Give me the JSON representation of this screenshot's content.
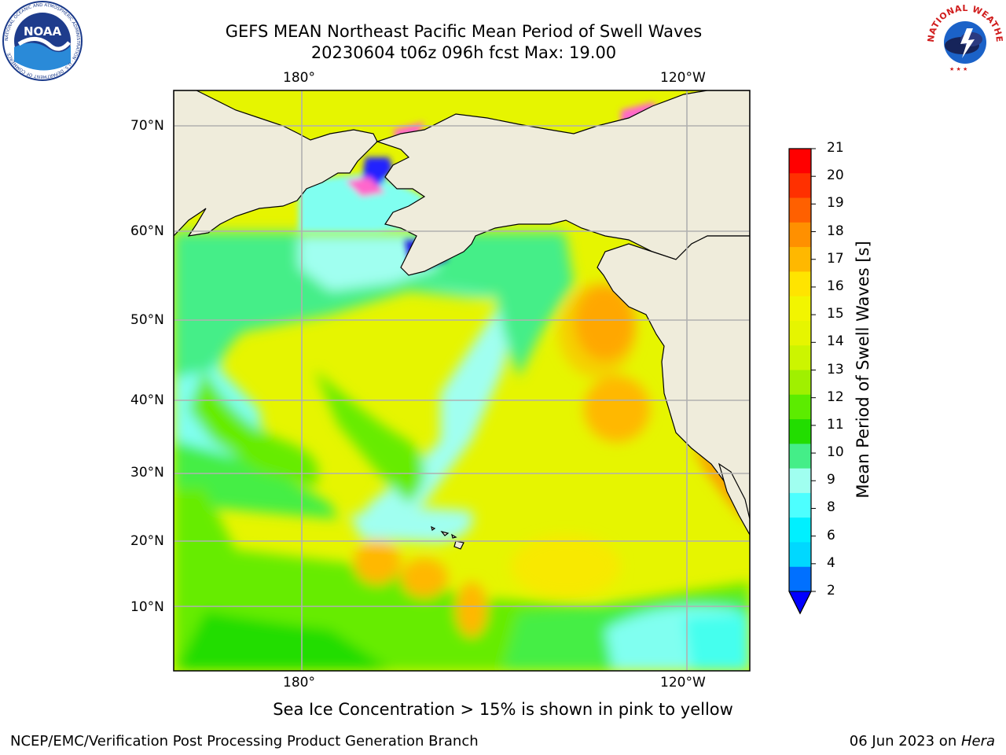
{
  "title": {
    "line1": "GEFS MEAN Northeast Pacific Mean Period of Swell Waves",
    "line2": "20230604 t06z 096h fcst   Max: 19.00"
  },
  "logos": {
    "noaa": {
      "icon": "noaa-logo",
      "text": "NOAA",
      "ring_text": "NATIONAL OCEANIC AND ATMOSPHERIC ADMINISTRATION · U.S. DEPARTMENT OF COMMERCE"
    },
    "nws": {
      "icon": "nws-logo",
      "ring_text": "NATIONAL WEATHER SERVICE"
    }
  },
  "map": {
    "top_lon_labels": [
      "180°",
      "120°W"
    ],
    "bottom_lon_labels": [
      "180°",
      "120°W"
    ],
    "lat_labels": [
      "70°N",
      "60°N",
      "50°N",
      "40°N",
      "30°N",
      "20°N",
      "10°N"
    ],
    "land_color": "#efecdb",
    "ocean_dominant_color": "#e6f500",
    "ice_colors": [
      "#ff55cc",
      "#ffb0e0",
      "#2020ff",
      "#ffe000"
    ]
  },
  "colorbar": {
    "label": "Mean Period of Swell Waves [s]",
    "ticks": [
      "21",
      "20",
      "19",
      "18",
      "17",
      "16",
      "15",
      "14",
      "13",
      "12",
      "11",
      "10",
      "9",
      "8",
      "6",
      "4",
      "2"
    ],
    "colors_top_to_bottom": [
      "#ff0000",
      "#ff3000",
      "#ff6000",
      "#ff9000",
      "#ffb800",
      "#ffe400",
      "#f2f500",
      "#e6f500",
      "#ccf500",
      "#a0f000",
      "#5cec00",
      "#22dd00",
      "#44ee88",
      "#a0fff0",
      "#4dffff",
      "#00f0ff",
      "#00d8ff",
      "#0070ff"
    ],
    "extend_color": "#0000ff"
  },
  "caption": "Sea Ice Concentration > 15% is shown in pink to yellow",
  "footer": {
    "left": "NCEP/EMC/Verification Post Processing Product Generation Branch",
    "right_prefix": "06 Jun 2023 on ",
    "right_host": "Hera"
  }
}
